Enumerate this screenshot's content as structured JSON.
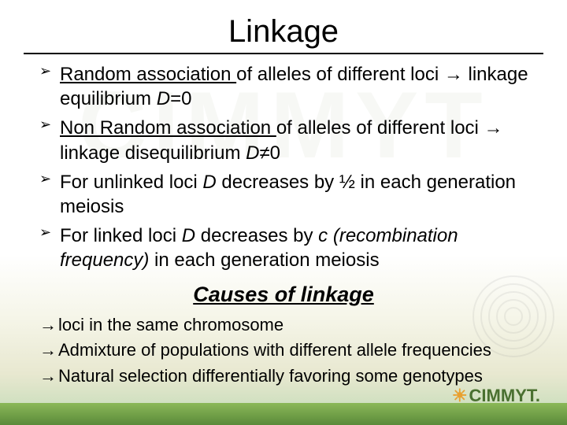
{
  "title": "Linkage",
  "bullets": [
    {
      "pre": "Random association ",
      "rest": "of alleles of different loci → linkage equilibrium ",
      "var": "D",
      "after": "=0"
    },
    {
      "pre": "Non Random association ",
      "rest": "of alleles of different loci → linkage disequilibrium ",
      "var": "D",
      "after": "≠0"
    },
    {
      "text1": "For unlinked loci ",
      "var": "D",
      "text2": " decreases by ½ in each generation meiosis"
    },
    {
      "text1": "For linked loci ",
      "var": "D",
      "text2": " decreases by ",
      "ital": "c (recombination frequency)",
      "text3": " in each generation meiosis"
    }
  ],
  "subtitle": "Causes of linkage",
  "causes": [
    " loci in the same chromosome",
    " Admixture of populations with different allele frequencies",
    "Natural selection differentially favoring some genotypes"
  ],
  "logo": "CIMMYT.",
  "style": {
    "title_fontsize": 40,
    "body_fontsize": 24,
    "causes_fontsize": 22,
    "subtitle_fontsize": 27,
    "text_color": "#000000",
    "background_top": "#ffffff",
    "background_bottom": "#a8c888",
    "footer_color_top": "#8bb858",
    "footer_color_bottom": "#5a8a3a",
    "logo_color": "#4a7030",
    "logo_sun_color": "#e8a030"
  }
}
